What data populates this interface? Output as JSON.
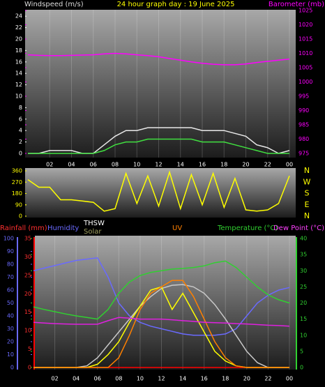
{
  "chart_data": [
    {
      "type": "line",
      "title": "24 hour graph day : 19 June 2025",
      "y_label": "Windspeed (m/s)",
      "y2_label": "Barometer (mb)",
      "xlim": [
        0,
        24
      ],
      "xticks": [
        {
          "value": 2,
          "label": "02"
        },
        {
          "value": 4,
          "label": "04"
        },
        {
          "value": 6,
          "label": "06"
        },
        {
          "value": 8,
          "label": "08"
        },
        10,
        12,
        14,
        16,
        18,
        20,
        22,
        {
          "value": 24,
          "label": "00"
        }
      ],
      "ylim": [
        0,
        25
      ],
      "yticks": [
        0,
        2,
        4,
        6,
        8,
        10,
        12,
        14,
        16,
        18,
        20,
        22,
        24
      ],
      "y2lim": [
        975,
        1025
      ],
      "y2ticks": [
        975,
        980,
        985,
        990,
        995,
        1000,
        1005,
        1010,
        1015,
        1020,
        1025
      ],
      "x": [
        0,
        1,
        2,
        3,
        4,
        5,
        6,
        7,
        8,
        9,
        10,
        11,
        12,
        13,
        14,
        15,
        16,
        17,
        18,
        19,
        20,
        21,
        22,
        23,
        24
      ],
      "series": [
        {
          "color": "#e8e8e8",
          "values": [
            0,
            0,
            0.5,
            0.5,
            0.5,
            0,
            0,
            1.5,
            3,
            4,
            4,
            4.5,
            4.5,
            4.5,
            4.5,
            4.5,
            4,
            4,
            4,
            3.5,
            3,
            1.5,
            1,
            0,
            0.5
          ]
        },
        {
          "color": "#40e040",
          "values": [
            0,
            0,
            0,
            0,
            0,
            0,
            0,
            0.5,
            1.5,
            2,
            2,
            2.5,
            2.5,
            2.5,
            2.5,
            2.5,
            2,
            2,
            2,
            1.5,
            1,
            0.5,
            0,
            0,
            0
          ]
        },
        {
          "color": "#ff00ff",
          "axis": "y2",
          "values": [
            1009.5,
            1009.3,
            1009.2,
            1009.2,
            1009.3,
            1009.4,
            1009.5,
            1009.8,
            1010,
            1009.8,
            1009.5,
            1009.2,
            1008.8,
            1008.2,
            1007.6,
            1007,
            1006.5,
            1006.2,
            1006,
            1006,
            1006.3,
            1006.8,
            1007.2,
            1007.6,
            1008
          ]
        }
      ]
    },
    {
      "type": "line",
      "xlim": [
        0,
        24
      ],
      "ylim": [
        0,
        360
      ],
      "yticks": [
        0,
        90,
        180,
        270,
        360
      ],
      "y2lim": [
        0,
        360
      ],
      "y2ticks": [
        {
          "value": 360,
          "label": "N"
        },
        {
          "value": 270,
          "label": "W"
        },
        {
          "value": 180,
          "label": "S"
        },
        {
          "value": 90,
          "label": "E"
        },
        {
          "value": 0,
          "label": "N"
        }
      ],
      "x": [
        0,
        1,
        2,
        3,
        4,
        5,
        6,
        7,
        8,
        9,
        10,
        11,
        12,
        13,
        14,
        15,
        16,
        17,
        18,
        19,
        20,
        21,
        22,
        23,
        24
      ],
      "series": [
        {
          "color": "#ffff00",
          "values": [
            290,
            230,
            230,
            130,
            130,
            120,
            110,
            40,
            60,
            340,
            100,
            320,
            80,
            350,
            60,
            330,
            90,
            340,
            70,
            300,
            50,
            40,
            50,
            100,
            320
          ]
        }
      ]
    },
    {
      "type": "line",
      "xlim": [
        0,
        24
      ],
      "xticks": [
        {
          "value": 2,
          "label": "02"
        },
        {
          "value": 4,
          "label": "04"
        },
        {
          "value": 6,
          "label": "06"
        },
        {
          "value": 8,
          "label": "08"
        },
        10,
        12,
        14,
        16,
        18,
        20,
        22,
        {
          "value": 24,
          "label": "00"
        }
      ],
      "ylim": [
        0,
        35
      ],
      "yticks": [
        0,
        5,
        10,
        15,
        20,
        25,
        30,
        35
      ],
      "y3lim": [
        0,
        100
      ],
      "y3ticks": [
        0,
        10,
        20,
        30,
        40,
        50,
        60,
        70,
        80,
        90,
        100
      ],
      "y2lim": [
        0,
        40
      ],
      "y2ticks": [
        0,
        5,
        10,
        15,
        20,
        25,
        30,
        35,
        40
      ],
      "x": [
        0,
        1,
        2,
        3,
        4,
        5,
        6,
        7,
        8,
        9,
        10,
        11,
        12,
        13,
        14,
        15,
        16,
        17,
        18,
        19,
        20,
        21,
        22,
        23,
        24
      ],
      "series": [
        {
          "name": "Rainfall (mm)",
          "color": "#ff0000",
          "values": [
            0,
            0,
            0,
            0,
            0,
            0,
            0,
            0,
            0,
            0,
            0,
            0,
            0,
            0,
            0,
            0,
            0,
            0,
            0,
            0,
            0,
            0,
            0,
            0,
            0
          ]
        },
        {
          "name": "Humidity",
          "color": "#6a6aff",
          "axis": "y3",
          "values": [
            75,
            77,
            79,
            81,
            83,
            84,
            85,
            70,
            50,
            40,
            35,
            32,
            30,
            28,
            26,
            25,
            25,
            25,
            26,
            30,
            40,
            50,
            56,
            60,
            62
          ]
        },
        {
          "name": "THSW",
          "color": "#c8c8c8",
          "axis": "y2",
          "values": [
            0,
            0,
            0,
            0,
            0,
            0.5,
            3,
            7,
            11,
            15,
            19,
            22,
            24.5,
            25.5,
            25.7,
            25,
            23,
            19.5,
            15,
            10,
            5,
            1.5,
            0,
            0,
            0
          ]
        },
        {
          "name": "Solar",
          "color": "#ffff00",
          "axis": "y2",
          "values": [
            0,
            0,
            0,
            0,
            0,
            0,
            1,
            4,
            8,
            14,
            19,
            24,
            25,
            18,
            23,
            17,
            11,
            5,
            2,
            0.5,
            0,
            0,
            0,
            0,
            0
          ]
        },
        {
          "name": "UV",
          "color": "#ff8000",
          "axis": "y2",
          "values": [
            0,
            0,
            0,
            0,
            0,
            0,
            0,
            0,
            3,
            10,
            18,
            23,
            25,
            27,
            27,
            22,
            15,
            8,
            3,
            0.5,
            0,
            0,
            0,
            0,
            0
          ]
        },
        {
          "name": "Temperature (°C)",
          "color": "#30d030",
          "axis": "y2",
          "values": [
            18.8,
            18,
            17.3,
            16.6,
            16,
            15.5,
            15,
            18,
            23,
            26.5,
            28.5,
            29.5,
            30,
            30.5,
            30.7,
            31,
            31.5,
            32.5,
            33,
            31,
            28,
            25,
            22.5,
            21,
            20
          ]
        },
        {
          "name": "Dew Point (°C)",
          "color": "#e020e0",
          "axis": "y2",
          "values": [
            14,
            13.8,
            13.6,
            13.5,
            13.4,
            13.4,
            13.4,
            14.5,
            15.5,
            15.3,
            15,
            15,
            15,
            14.8,
            14.5,
            14.3,
            14,
            13.9,
            13.8,
            13.6,
            13.5,
            13.3,
            13.1,
            13,
            12.8
          ]
        }
      ]
    }
  ]
}
